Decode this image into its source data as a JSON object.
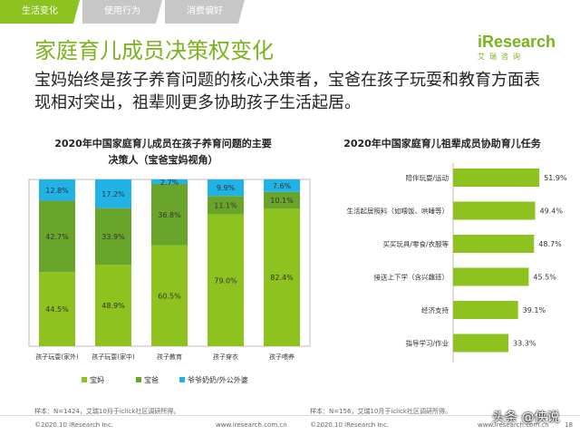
{
  "tabs": [
    {
      "label": "生活变化",
      "active": true
    },
    {
      "label": "使用行为",
      "active": false
    },
    {
      "label": "消费偏好",
      "active": false
    }
  ],
  "title": "家庭育儿成员决策权变化",
  "logo": {
    "wordmark": "iResearch",
    "sub": "艾瑞咨询"
  },
  "summary": "宝妈始终是孩子养育问题的核心决策者，宝爸在孩子玩耍和教育方面表现相对突出，祖辈则更多协助孩子生活起居。",
  "left_chart_title_line1": "2020年中国家庭育儿成员在孩子养育问题的主要",
  "left_chart_title_line2": "决策人（宝爸宝妈视角）",
  "right_chart_title": "2020年中国家庭育儿祖辈成员协助育儿任务",
  "left_note": "样本：N=1424，艾瑞10月于iclick社区调研所得。",
  "right_note": "样本：N=156，艾瑞10月于iclick社区调研所得。",
  "footer_left_1": "©2020.10 iResearch Inc.",
  "footer_url_1": "www.iresearch.com.cn",
  "footer_left_2": "©2020.10 iResearch Inc.",
  "footer_url_2": "www.iresearch.com.cn",
  "page_number": "18",
  "watermark": "头条 @侠说",
  "colors": {
    "accent": "#8dc21f",
    "mom": "#8dc21f",
    "dad": "#6aa52b",
    "grand": "#21b2e6",
    "bar": "#8dc21f"
  },
  "chart_data": [
    {
      "type": "bar",
      "stacked": true,
      "percent": true,
      "title": "2020年中国家庭育儿成员在孩子养育问题的主要决策人（宝爸宝妈视角）",
      "categories": [
        "孩子玩耍(家外)",
        "孩子玩耍(家中)",
        "孩子教育",
        "孩子穿衣",
        "孩子喂养"
      ],
      "series": [
        {
          "name": "宝妈",
          "values": [
            44.5,
            48.9,
            60.5,
            79.0,
            82.4
          ],
          "labels": [
            "44.5%",
            "48.9%",
            "60.5%",
            "79.0%",
            "82.4%"
          ]
        },
        {
          "name": "宝爸",
          "values": [
            42.7,
            33.9,
            36.8,
            11.1,
            10.1
          ],
          "labels": [
            "42.7%",
            "33.9%",
            "36.8%",
            "11.1%",
            "10.1%"
          ]
        },
        {
          "name": "爷爷奶奶/外公外婆",
          "values": [
            12.8,
            17.2,
            2.7,
            9.9,
            7.6
          ],
          "labels": [
            "12.8%",
            "17.2%",
            "2.7%",
            "9.9%",
            "7.6%"
          ]
        }
      ],
      "ylim": [
        0,
        100
      ],
      "legend": "bottom"
    },
    {
      "type": "bar",
      "orientation": "horizontal",
      "title": "2020年中国家庭育儿祖辈成员协助育儿任务",
      "categories": [
        "陪伴玩耍/运动",
        "生活起居照料（如喂饭、哄睡等）",
        "买买玩具/零食/衣服等",
        "接送上下学（含兴趣班）",
        "经济支持",
        "指导学习/作业"
      ],
      "values": [
        51.9,
        49.4,
        48.7,
        45.5,
        39.1,
        33.3
      ],
      "labels": [
        "51.9%",
        "49.4%",
        "48.7%",
        "45.5%",
        "39.1%",
        "33.3%"
      ],
      "xlim": [
        0,
        60
      ]
    }
  ]
}
